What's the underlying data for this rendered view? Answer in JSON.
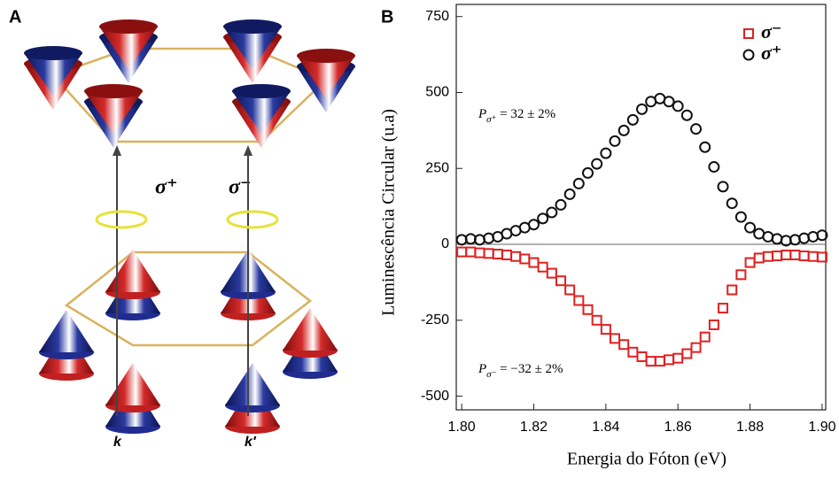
{
  "diagram": {
    "label": "A",
    "arrows": [
      "σ⁺",
      "σ⁻"
    ],
    "valleys": [
      "k",
      "k′"
    ]
  },
  "chart_data": {
    "type": "scatter",
    "panel_label": "B",
    "x_label": "Energia do Fóton (eV)",
    "y_label": "Luminescência Circular (u.a)",
    "x": [
      1.8,
      1.8025,
      1.805,
      1.8075,
      1.81,
      1.8125,
      1.815,
      1.8175,
      1.82,
      1.8225,
      1.825,
      1.8275,
      1.83,
      1.8325,
      1.835,
      1.8375,
      1.84,
      1.8425,
      1.845,
      1.8475,
      1.85,
      1.8525,
      1.855,
      1.8575,
      1.86,
      1.8625,
      1.865,
      1.8675,
      1.87,
      1.8725,
      1.875,
      1.8775,
      1.88,
      1.8825,
      1.885,
      1.8875,
      1.89,
      1.8925,
      1.895,
      1.8975,
      1.9
    ],
    "series": [
      {
        "name": "σ⁻",
        "color": "#e02020",
        "marker": "square",
        "values": [
          -25,
          -25,
          -28,
          -30,
          -32,
          -35,
          -40,
          -48,
          -60,
          -75,
          -95,
          -120,
          -150,
          -185,
          -215,
          -250,
          -280,
          -310,
          -330,
          -355,
          -370,
          -385,
          -385,
          -380,
          -375,
          -360,
          -340,
          -305,
          -265,
          -210,
          -150,
          -100,
          -60,
          -45,
          -40,
          -38,
          -35,
          -35,
          -38,
          -40,
          -42
        ]
      },
      {
        "name": "σ⁺",
        "color": "#111111",
        "marker": "circle",
        "values": [
          15,
          18,
          15,
          20,
          25,
          35,
          45,
          55,
          65,
          85,
          105,
          130,
          165,
          200,
          235,
          265,
          300,
          340,
          375,
          410,
          445,
          470,
          480,
          470,
          455,
          425,
          380,
          320,
          255,
          190,
          135,
          90,
          55,
          35,
          25,
          18,
          12,
          15,
          20,
          25,
          30
        ]
      }
    ],
    "annotations": [
      {
        "parts": [
          "P",
          "σ⁺",
          " = 32 ± 2%"
        ]
      },
      {
        "parts": [
          "P",
          "σ⁻",
          " = −32 ± 2%"
        ]
      }
    ],
    "xlim": [
      1.7985,
      1.901
    ],
    "ylim": [
      -545,
      790
    ],
    "xticks": [
      {
        "value": 1.8,
        "label": "1.80"
      },
      {
        "value": 1.82,
        "label": "1.82"
      },
      {
        "value": 1.84,
        "label": "1.84"
      },
      {
        "value": 1.86,
        "label": "1.86"
      },
      {
        "value": 1.88,
        "label": "1.88"
      },
      {
        "value": 1.9,
        "label": "1.90"
      }
    ],
    "yticks": [
      -500,
      -250,
      0,
      250,
      500,
      750
    ],
    "legend": "upper-right",
    "zero_line": true
  }
}
